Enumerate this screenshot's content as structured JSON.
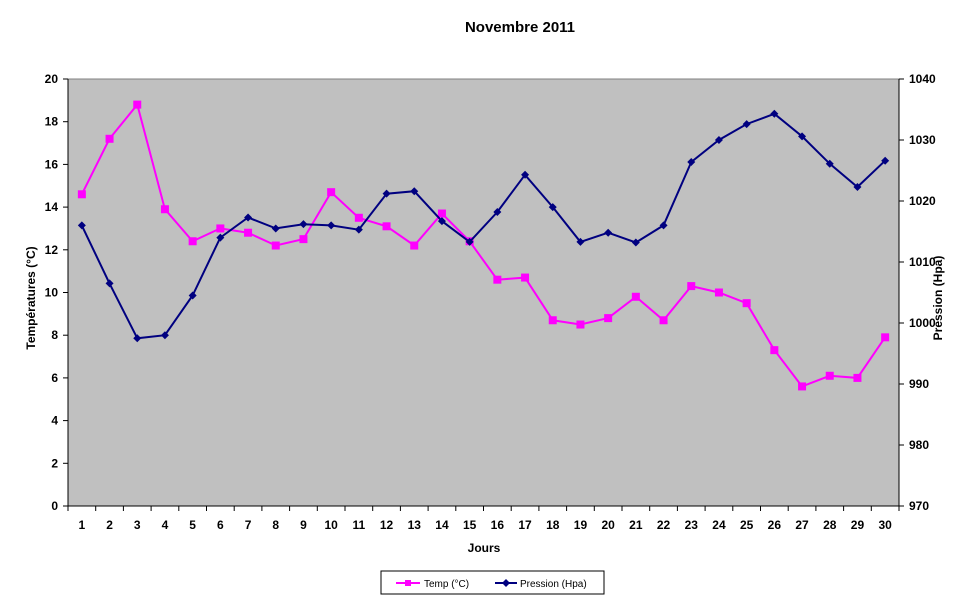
{
  "chart_data": {
    "type": "line",
    "title": "Novembre 2011",
    "xlabel": "Jours",
    "ylabel": "Températures  (°C)",
    "y2label": "Pression (Hpa)",
    "ylim": [
      0,
      20
    ],
    "y2lim": [
      970,
      1040
    ],
    "yticks": [
      0,
      2,
      4,
      6,
      8,
      10,
      12,
      14,
      16,
      18,
      20
    ],
    "y2ticks": [
      970,
      980,
      990,
      1000,
      1010,
      1020,
      1030,
      1040
    ],
    "x": [
      1,
      2,
      3,
      4,
      5,
      6,
      7,
      8,
      9,
      10,
      11,
      12,
      13,
      14,
      15,
      16,
      17,
      18,
      19,
      20,
      21,
      22,
      23,
      24,
      25,
      26,
      27,
      28,
      29,
      30
    ],
    "grid": false,
    "legend_position": "bottom",
    "plot_background": "#c0c0c0",
    "series": [
      {
        "name": "Temp (°C)",
        "axis": "left",
        "color": "#ff00ff",
        "marker": "square",
        "values": [
          14.6,
          17.2,
          18.8,
          13.9,
          12.4,
          13.0,
          12.8,
          12.2,
          12.5,
          14.7,
          13.5,
          13.1,
          12.2,
          13.7,
          12.4,
          10.6,
          10.7,
          8.7,
          8.5,
          8.8,
          9.8,
          8.7,
          10.3,
          10.0,
          9.5,
          7.3,
          5.6,
          6.1,
          6.0,
          7.9
        ]
      },
      {
        "name": "Pression (Hpa)",
        "axis": "right",
        "color": "#000080",
        "marker": "diamond",
        "values": [
          1016,
          1006.5,
          997.5,
          998,
          1004.5,
          1014,
          1017.3,
          1015.5,
          1016.2,
          1016,
          1015.3,
          1021.2,
          1021.6,
          1016.7,
          1013.3,
          1018.2,
          1024.3,
          1019,
          1013.3,
          1014.8,
          1013.2,
          1016,
          1026.4,
          1030,
          1032.6,
          1034.3,
          1030.6,
          1026.1,
          1022.3,
          1026.6
        ]
      }
    ]
  }
}
